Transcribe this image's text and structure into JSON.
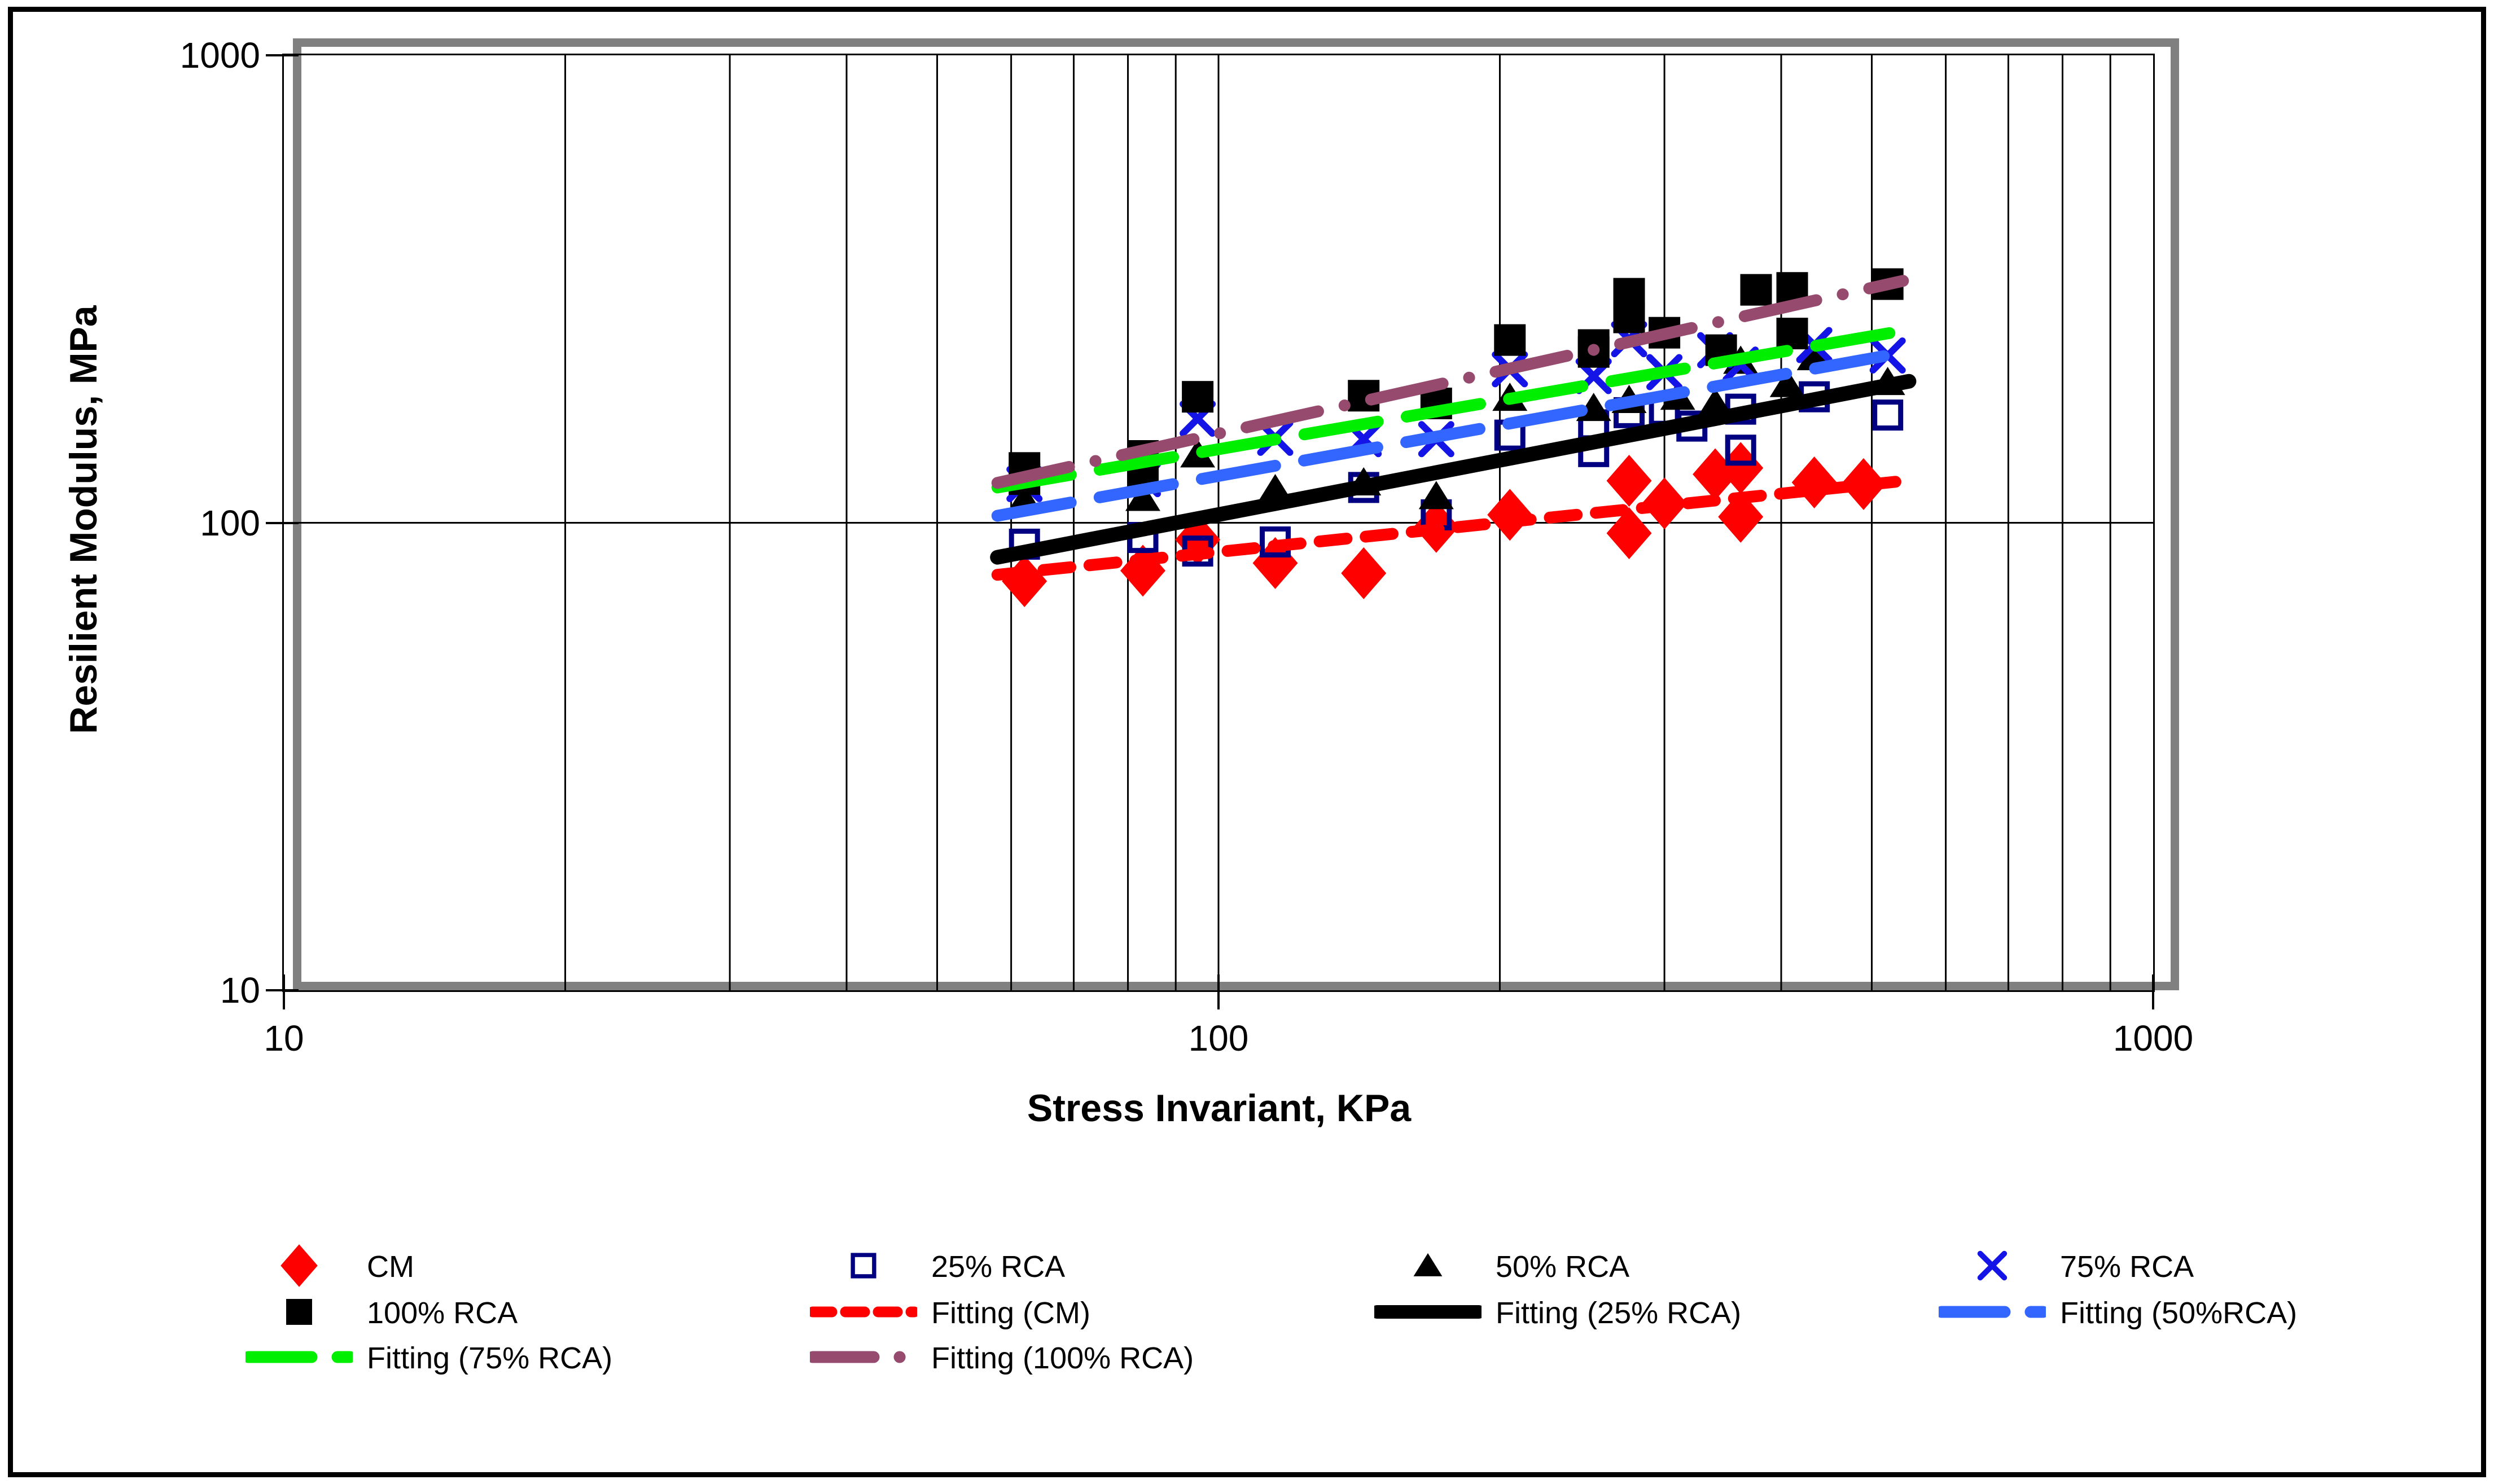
{
  "chart_data": {
    "type": "scatter",
    "title": "",
    "xlabel": "Stress Invariant, KPa",
    "ylabel": "Resilient Modulus, MPa",
    "xscale": "log",
    "yscale": "log",
    "xlim": [
      10,
      1000
    ],
    "ylim": [
      10,
      1000
    ],
    "grid": "on",
    "x_ticks": [
      10,
      100,
      1000
    ],
    "y_ticks": [
      1000,
      100,
      10
    ],
    "x_minor_gridlines": [
      20,
      30,
      40,
      50,
      60,
      70,
      80,
      90,
      100,
      200,
      300,
      400,
      500,
      600,
      700,
      800,
      900
    ],
    "y_gridlines": [
      100
    ],
    "series": [
      {
        "name": "CM",
        "marker": "diamond",
        "color": "#FF0000",
        "points": [
          [
            62,
            75
          ],
          [
            83,
            79
          ],
          [
            95,
            92
          ],
          [
            115,
            82
          ],
          [
            143,
            78
          ],
          [
            171,
            98
          ],
          [
            205,
            104
          ],
          [
            275,
            95
          ],
          [
            275,
            123
          ],
          [
            300,
            110
          ],
          [
            340,
            127
          ],
          [
            362,
            103
          ],
          [
            362,
            131
          ],
          [
            434,
            122
          ],
          [
            490,
            121
          ]
        ]
      },
      {
        "name": "25% RCA",
        "marker": "open-square",
        "color": "#000080",
        "points": [
          [
            62,
            90
          ],
          [
            83,
            93
          ],
          [
            95,
            87
          ],
          [
            115,
            91
          ],
          [
            143,
            119
          ],
          [
            171,
            104
          ],
          [
            205,
            154
          ],
          [
            252,
            142
          ],
          [
            252,
            162
          ],
          [
            275,
            172
          ],
          [
            300,
            174
          ],
          [
            321,
            161
          ],
          [
            362,
            143
          ],
          [
            362,
            175
          ],
          [
            434,
            186
          ],
          [
            520,
            170
          ]
        ]
      },
      {
        "name": "50% RCA",
        "marker": "triangle",
        "color": "#000000",
        "points": [
          [
            62,
            112
          ],
          [
            83,
            113
          ],
          [
            95,
            140
          ],
          [
            115,
            118
          ],
          [
            143,
            122
          ],
          [
            171,
            114
          ],
          [
            205,
            185
          ],
          [
            252,
            176
          ],
          [
            275,
            183
          ],
          [
            310,
            186
          ],
          [
            340,
            180
          ],
          [
            362,
            222
          ],
          [
            406,
            198
          ],
          [
            434,
            226
          ],
          [
            520,
            200
          ]
        ]
      },
      {
        "name": "75% RCA",
        "marker": "x",
        "color": "#1414E6",
        "points": [
          [
            62,
            121
          ],
          [
            83,
            124
          ],
          [
            95,
            167
          ],
          [
            115,
            152
          ],
          [
            143,
            151
          ],
          [
            171,
            151
          ],
          [
            205,
            213
          ],
          [
            252,
            206
          ],
          [
            275,
            247
          ],
          [
            300,
            210
          ],
          [
            340,
            234
          ],
          [
            362,
            218
          ],
          [
            434,
            240
          ],
          [
            520,
            228
          ]
        ]
      },
      {
        "name": "100% RCA",
        "marker": "square",
        "color": "#000000",
        "points": [
          [
            62,
            124
          ],
          [
            62,
            131
          ],
          [
            83,
            125
          ],
          [
            83,
            139
          ],
          [
            95,
            186
          ],
          [
            143,
            187
          ],
          [
            171,
            180
          ],
          [
            205,
            246
          ],
          [
            252,
            232
          ],
          [
            252,
            240
          ],
          [
            275,
            275
          ],
          [
            275,
            309
          ],
          [
            300,
            255
          ],
          [
            345,
            234
          ],
          [
            376,
            315
          ],
          [
            411,
            254
          ],
          [
            411,
            318
          ],
          [
            520,
            324
          ]
        ]
      }
    ],
    "fits": [
      {
        "name": "Fitting (CM)",
        "color": "#FF0000",
        "style": "dash",
        "model": "y=a*x^b",
        "a": 33.4,
        "b": 0.207,
        "x_range": [
          58,
          530
        ]
      },
      {
        "name": "Fitting (25% RCA)",
        "color": "#000000",
        "style": "solid",
        "model": "y=a*x^b",
        "a": 17.6,
        "b": 0.386,
        "x_range": [
          58,
          548
        ]
      },
      {
        "name": "Fitting (50%RCA)",
        "color": "#3366FF",
        "style": "longdash",
        "model": "y=a*x^b",
        "a": 24.0,
        "b": 0.36,
        "x_range": [
          58,
          515
        ]
      },
      {
        "name": "Fitting (75% RCA)",
        "color": "#00EE00",
        "style": "longdash",
        "model": "y=a*x^b",
        "a": 29.2,
        "b": 0.346,
        "x_range": [
          58,
          528
        ]
      },
      {
        "name": "Fitting (100% RCA)",
        "color": "#964A6E",
        "style": "dashdot",
        "model": "y=a*x^b",
        "a": 19.9,
        "b": 0.446,
        "x_range": [
          58,
          540
        ]
      }
    ],
    "legend_position": "bottom"
  },
  "legend": {
    "items": [
      {
        "label": "CM",
        "swatch": "marker-diamond",
        "color": "#FF0000",
        "col": 0,
        "row": 0
      },
      {
        "label": "25% RCA",
        "swatch": "marker-open-square",
        "color": "#000080",
        "col": 1,
        "row": 0
      },
      {
        "label": "50% RCA",
        "swatch": "marker-triangle",
        "color": "#000000",
        "col": 2,
        "row": 0
      },
      {
        "label": "75% RCA",
        "swatch": "marker-x",
        "color": "#1414E6",
        "col": 3,
        "row": 0
      },
      {
        "label": "100% RCA",
        "swatch": "marker-square",
        "color": "#000000",
        "col": 0,
        "row": 1
      },
      {
        "label": "Fitting (CM)",
        "swatch": "line-dash",
        "color": "#FF0000",
        "col": 1,
        "row": 1
      },
      {
        "label": "Fitting (25% RCA)",
        "swatch": "line-solid",
        "color": "#000000",
        "col": 2,
        "row": 1
      },
      {
        "label": "Fitting (50%RCA)",
        "swatch": "line-longdash",
        "color": "#3366FF",
        "col": 3,
        "row": 1
      },
      {
        "label": "Fitting (75% RCA)",
        "swatch": "line-longdash",
        "color": "#00EE00",
        "col": 0,
        "row": 2
      },
      {
        "label": "Fitting (100% RCA)",
        "swatch": "line-dashdot",
        "color": "#964A6E",
        "col": 1,
        "row": 2
      }
    ]
  },
  "colors": {
    "background": "#FFFFFF",
    "frame_border": "#000000",
    "plot_shadow": "#808080",
    "gridline": "#000000",
    "axis_text": "#000000"
  }
}
